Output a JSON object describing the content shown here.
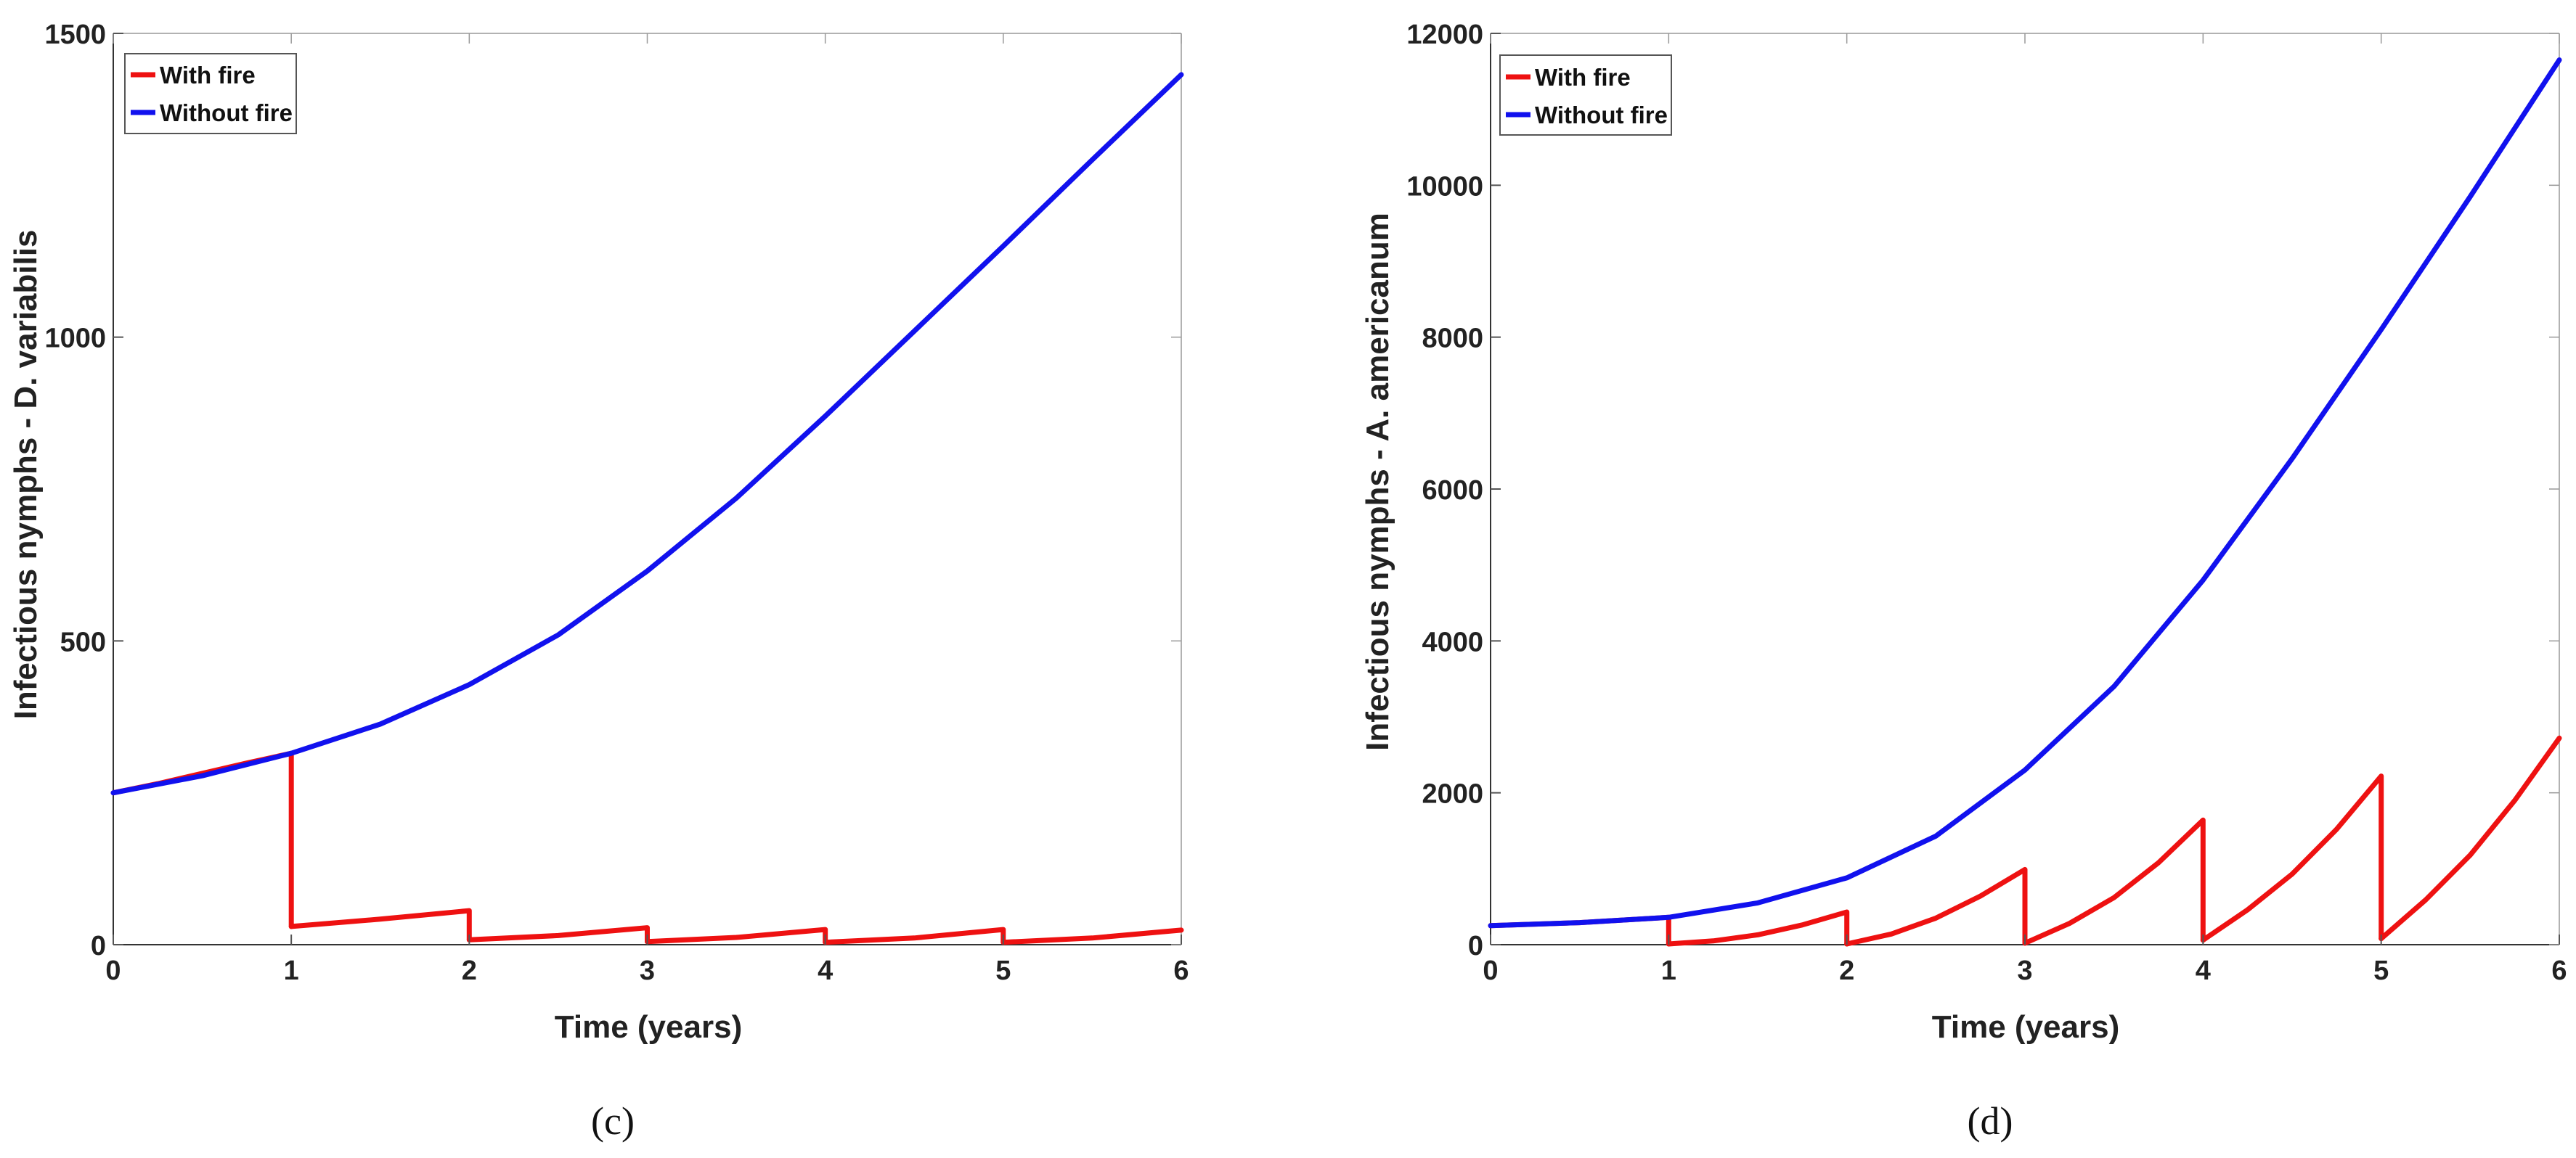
{
  "chart_data": [
    {
      "type": "line",
      "caption": "(c)",
      "xlabel": "Time (years)",
      "ylabel": "Infectious nymphs - D. variabilis",
      "xlim": [
        0,
        6
      ],
      "ylim": [
        0,
        1500
      ],
      "xticks": [
        0,
        1,
        2,
        3,
        4,
        5,
        6
      ],
      "yticks": [
        0,
        500,
        1000,
        1500
      ],
      "legend_position": "top-left",
      "grid": false,
      "series": [
        {
          "name": "With fire",
          "color": "#ee1111",
          "segments": [
            [
              [
                0,
                250
              ],
              [
                0.25,
                265
              ],
              [
                0.5,
                282
              ],
              [
                0.75,
                299
              ],
              [
                1,
                315
              ],
              [
                1,
                30
              ]
            ],
            [
              [
                1,
                30
              ],
              [
                1.5,
                42
              ],
              [
                2,
                56
              ],
              [
                2,
                8
              ]
            ],
            [
              [
                2,
                8
              ],
              [
                2.5,
                15
              ],
              [
                3,
                28
              ],
              [
                3,
                5
              ]
            ],
            [
              [
                3,
                5
              ],
              [
                3.5,
                12
              ],
              [
                4,
                25
              ],
              [
                4,
                4
              ]
            ],
            [
              [
                4,
                4
              ],
              [
                4.5,
                11
              ],
              [
                5,
                25
              ],
              [
                5,
                4
              ]
            ],
            [
              [
                5,
                4
              ],
              [
                5.5,
                11
              ],
              [
                6,
                24
              ]
            ]
          ]
        },
        {
          "name": "Without fire",
          "color": "#1111ee",
          "points": [
            [
              0,
              250
            ],
            [
              0.5,
              278
            ],
            [
              1,
              315
            ],
            [
              1.5,
              363
            ],
            [
              2,
              428
            ],
            [
              2.5,
              510
            ],
            [
              3,
              615
            ],
            [
              3.5,
              735
            ],
            [
              4,
              870
            ],
            [
              4.5,
              1010
            ],
            [
              5,
              1150
            ],
            [
              5.5,
              1292
            ],
            [
              6,
              1432
            ]
          ]
        }
      ]
    },
    {
      "type": "line",
      "caption": "(d)",
      "xlabel": "Time (years)",
      "ylabel": "Infectious  nymphs - A. americanum",
      "xlim": [
        0,
        6
      ],
      "ylim": [
        0,
        12000
      ],
      "xticks": [
        0,
        1,
        2,
        3,
        4,
        5,
        6
      ],
      "yticks": [
        0,
        2000,
        4000,
        6000,
        8000,
        10000,
        12000
      ],
      "legend_position": "top-left",
      "grid": false,
      "series": [
        {
          "name": "With fire",
          "color": "#ee1111",
          "segments": [
            [
              [
                0,
                250
              ],
              [
                0.5,
                290
              ],
              [
                1,
                360
              ],
              [
                1,
                10
              ]
            ],
            [
              [
                1,
                10
              ],
              [
                1.25,
                50
              ],
              [
                1.5,
                130
              ],
              [
                1.75,
                260
              ],
              [
                2,
                430
              ],
              [
                2,
                10
              ]
            ],
            [
              [
                2,
                10
              ],
              [
                2.25,
                140
              ],
              [
                2.5,
                350
              ],
              [
                2.75,
                640
              ],
              [
                3,
                990
              ],
              [
                3,
                20
              ]
            ],
            [
              [
                3,
                20
              ],
              [
                3.25,
                280
              ],
              [
                3.5,
                620
              ],
              [
                3.75,
                1080
              ],
              [
                4,
                1640
              ],
              [
                4,
                60
              ]
            ],
            [
              [
                4,
                60
              ],
              [
                4.25,
                460
              ],
              [
                4.5,
                930
              ],
              [
                4.75,
                1520
              ],
              [
                5,
                2220
              ],
              [
                5,
                80
              ]
            ],
            [
              [
                5,
                80
              ],
              [
                5.25,
                590
              ],
              [
                5.5,
                1180
              ],
              [
                5.75,
                1900
              ],
              [
                6,
                2720
              ]
            ]
          ]
        },
        {
          "name": "Without fire",
          "color": "#1111ee",
          "points": [
            [
              0,
              250
            ],
            [
              0.5,
              290
            ],
            [
              1,
              360
            ],
            [
              1.5,
              550
            ],
            [
              2,
              880
            ],
            [
              2.5,
              1430
            ],
            [
              3,
              2300
            ],
            [
              3.5,
              3400
            ],
            [
              4,
              4800
            ],
            [
              4.5,
              6400
            ],
            [
              5,
              8100
            ],
            [
              5.5,
              9850
            ],
            [
              6,
              11650
            ]
          ]
        }
      ]
    }
  ]
}
